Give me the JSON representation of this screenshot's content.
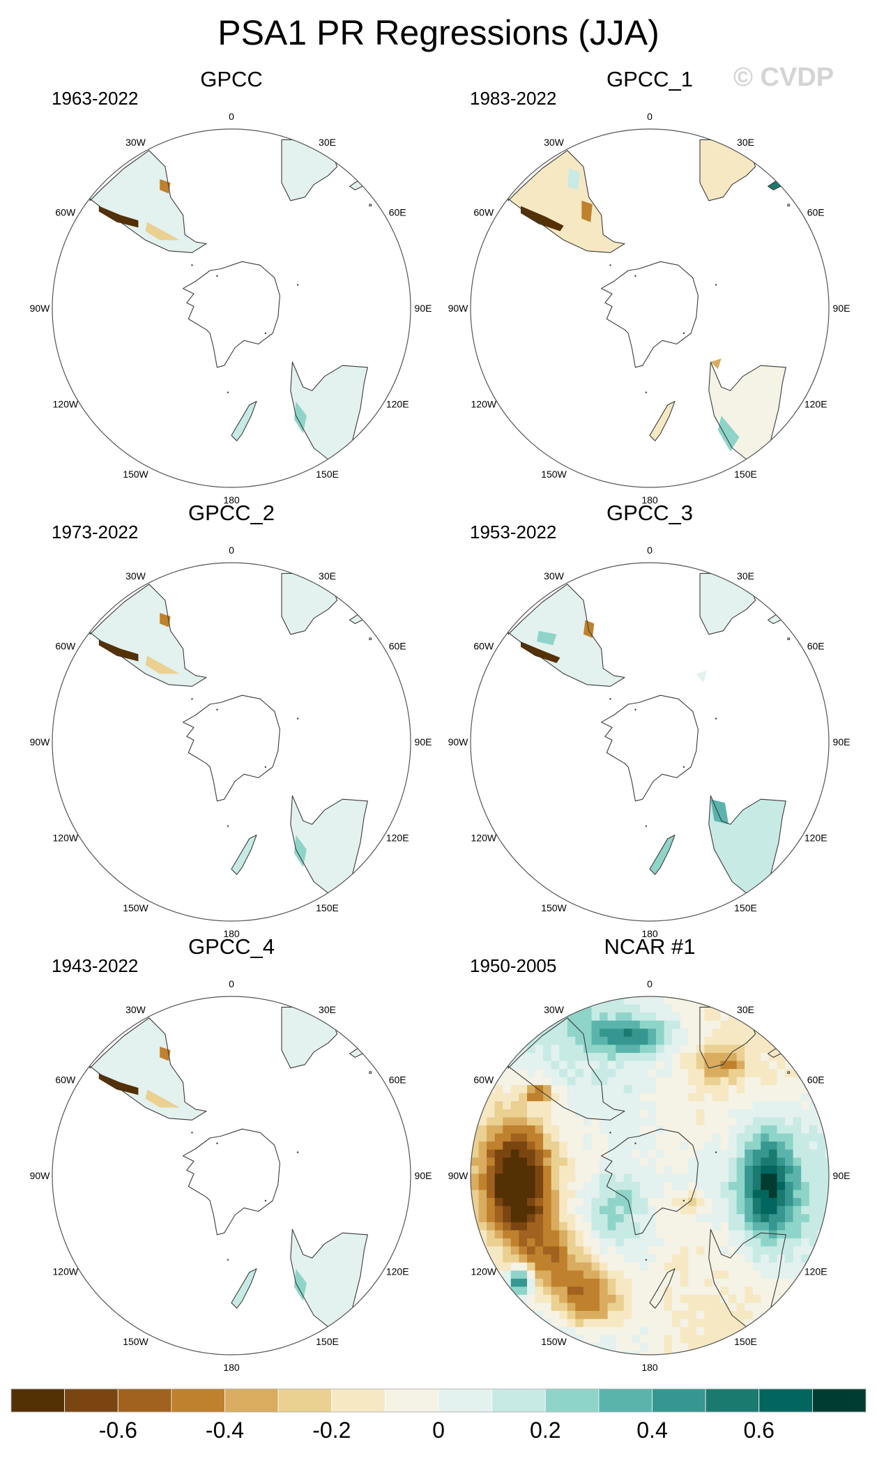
{
  "title": "PSA1 PR Regressions (JJA)",
  "watermark": "© CVDP",
  "colors": {
    "frame": "#555555",
    "coast": "#3a3a3a",
    "palette": [
      "#543005",
      "#7a4510",
      "#a0621e",
      "#bf812d",
      "#d9ac5f",
      "#ead091",
      "#f6e8c3",
      "#f5f2e6",
      "#e3f1ef",
      "#c7eae5",
      "#8fd4c9",
      "#5ab4ac",
      "#35978f",
      "#1a7a70",
      "#01665e",
      "#003c30"
    ]
  },
  "chart_data": [
    {
      "type": "heatmap",
      "title": "GPCC",
      "period": "1963-2022",
      "variant": "obs_sparse"
    },
    {
      "type": "heatmap",
      "title": "GPCC_1",
      "period": "1983-2022",
      "variant": "obs_mixed"
    },
    {
      "type": "heatmap",
      "title": "GPCC_2",
      "period": "1973-2022",
      "variant": "obs_sparse"
    },
    {
      "type": "heatmap",
      "title": "GPCC_3",
      "period": "1953-2022",
      "variant": "obs_green"
    },
    {
      "type": "heatmap",
      "title": "GPCC_4",
      "period": "1943-2022",
      "variant": "obs_sparse"
    },
    {
      "type": "heatmap",
      "title": "NCAR #1",
      "period": "1950-2005",
      "variant": "model_full"
    }
  ],
  "lon_labels": [
    {
      "lon": 0,
      "text": "0"
    },
    {
      "lon": 30,
      "text": "30E"
    },
    {
      "lon": 60,
      "text": "60E"
    },
    {
      "lon": 90,
      "text": "90E"
    },
    {
      "lon": 120,
      "text": "120E"
    },
    {
      "lon": 150,
      "text": "150E"
    },
    {
      "lon": 180,
      "text": "180"
    },
    {
      "lon": -150,
      "text": "150W"
    },
    {
      "lon": -120,
      "text": "120W"
    },
    {
      "lon": -90,
      "text": "90W"
    },
    {
      "lon": -60,
      "text": "60W"
    },
    {
      "lon": -30,
      "text": "30W"
    }
  ],
  "colorbar": {
    "min": -0.8,
    "max": 0.8,
    "step": 0.1,
    "ticks": [
      {
        "value": -0.6,
        "label": "-0.6"
      },
      {
        "value": -0.4,
        "label": "-0.4"
      },
      {
        "value": -0.2,
        "label": "-0.2"
      },
      {
        "value": 0,
        "label": "0"
      },
      {
        "value": 0.2,
        "label": "0.2"
      },
      {
        "value": 0.4,
        "label": "0.4"
      },
      {
        "value": 0.6,
        "label": "0.6"
      }
    ]
  }
}
